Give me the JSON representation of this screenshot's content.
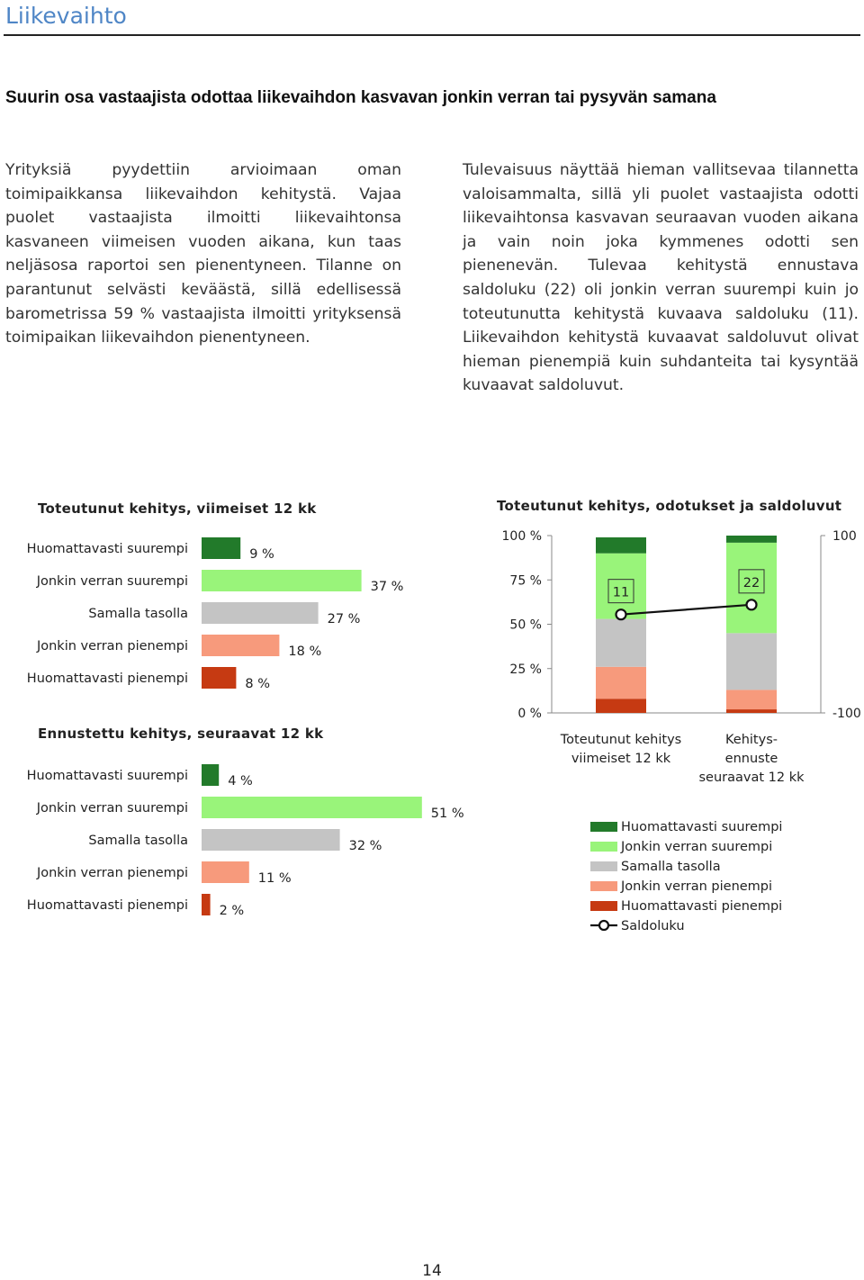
{
  "page": {
    "section_title": "Liikevaihto",
    "headline": "Suurin osa vastaajista odottaa liikevaihdon kasvavan jonkin verran tai pysyvän samana",
    "column_left": "Yrityksiä pyydettiin arvioimaan oman toimipaikkansa liikevaihdon kehitystä. Vajaa puolet vastaajista ilmoitti liikevaihtonsa kasvaneen viimeisen vuoden aikana, kun taas neljäsosa raportoi sen pienentyneen. Tilanne on parantunut selvästi keväästä, sillä edellisessä barometrissa 59 % vastaajista ilmoitti yrityksensä toimipaikan liikevaihdon pienentyneen.",
    "column_right": "Tulevaisuus näyttää hieman vallitsevaa tilannetta valoisammalta, sillä yli puolet vastaajista odotti liikevaihtonsa kasvavan seuraavan vuoden aikana ja vain noin joka kymmenes odotti sen pienenevän. Tulevaa kehitystä ennustava saldoluku (22) oli jonkin verran suurempi kuin jo toteutunutta kehitystä kuvaava saldoluku (11). Liikevaihdon kehitystä kuvaavat saldoluvut olivat hieman pienempiä kuin suhdanteita tai kysyntää kuvaavat saldoluvut.",
    "page_number": "14"
  },
  "colors": {
    "title_blue": "#4f86c6",
    "huomattavasti_suurempi": "#227a2a",
    "jonkin_verran_suurempi": "#99f47a",
    "samalla_tasolla": "#c4c4c4",
    "jonkin_verran_pienempi": "#f79a7c",
    "huomattavasti_pienempi": "#c63a12",
    "saldoluku_line": "#111111"
  },
  "chart_data": [
    {
      "type": "bar",
      "orientation": "horizontal",
      "title": "Toteutunut kehitys, viimeiset 12 kk",
      "categories": [
        "Huomattavasti suurempi",
        "Jonkin verran suurempi",
        "Samalla tasolla",
        "Jonkin verran pienempi",
        "Huomattavasti pienempi"
      ],
      "values": [
        9,
        37,
        27,
        18,
        8
      ],
      "value_labels": [
        "9 %",
        "37 %",
        "27 %",
        "18 %",
        "8 %"
      ],
      "unit": "%"
    },
    {
      "type": "bar",
      "orientation": "horizontal",
      "title": "Ennustettu kehitys, seuraavat 12 kk",
      "categories": [
        "Huomattavasti suurempi",
        "Jonkin verran suurempi",
        "Samalla tasolla",
        "Jonkin verran pienempi",
        "Huomattavasti pienempi"
      ],
      "values": [
        4,
        51,
        32,
        11,
        2
      ],
      "value_labels": [
        "4 %",
        "51 %",
        "32 %",
        "11 %",
        "2 %"
      ],
      "unit": "%"
    },
    {
      "type": "bar",
      "stacked": true,
      "title": "Toteutunut kehitys, odotukset ja saldoluvut",
      "categories": [
        "Toteutunut kehitys viimeiset 12 kk",
        "Kehitys- ennuste seuraavat 12 kk"
      ],
      "category_lines": [
        [
          "Toteutunut kehitys",
          "viimeiset 12 kk"
        ],
        [
          "Kehitys-",
          "ennuste",
          "seuraavat 12 kk"
        ]
      ],
      "series": [
        {
          "name": "Huomattavasti pienempi",
          "values": [
            8,
            2
          ]
        },
        {
          "name": "Jonkin verran pienempi",
          "values": [
            18,
            11
          ]
        },
        {
          "name": "Samalla tasolla",
          "values": [
            27,
            32
          ]
        },
        {
          "name": "Jonkin verran suurempi",
          "values": [
            37,
            51
          ]
        },
        {
          "name": "Huomattavasti suurempi",
          "values": [
            9,
            4
          ]
        }
      ],
      "line_series": {
        "name": "Saldoluku",
        "values": [
          11,
          22
        ],
        "labels": [
          "11",
          "22"
        ]
      },
      "ylim": [
        0,
        100
      ],
      "y_ticks": [
        "0 %",
        "25 %",
        "50 %",
        "75 %",
        "100 %"
      ],
      "y2lim": [
        -100,
        100
      ],
      "y2_ticks": [
        "-100",
        "100"
      ],
      "legend": {
        "position": "bottom",
        "entries": [
          "Huomattavasti suurempi",
          "Jonkin verran suurempi",
          "Samalla tasolla",
          "Jonkin verran pienempi",
          "Huomattavasti pienempi",
          "Saldoluku"
        ]
      }
    }
  ]
}
